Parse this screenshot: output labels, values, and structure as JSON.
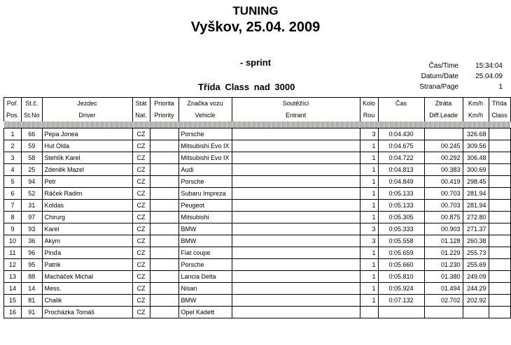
{
  "header": {
    "title": "TUNING",
    "subtitle": "Vyškov, 25.04. 2009",
    "stage": "- sprint",
    "class_title": "Třída  Class  nad 3000"
  },
  "info": [
    {
      "label": "Čas/Time",
      "value": "15:34:04"
    },
    {
      "label": "Datum/Date",
      "value": "25.04.09"
    },
    {
      "label": "Strana/Page",
      "value": "1"
    }
  ],
  "columns": [
    [
      "Poř.",
      "Pos."
    ],
    [
      "St.č.",
      "St.No"
    ],
    [
      "Jezdec",
      "Driver"
    ],
    [
      "Stát",
      "Nat."
    ],
    [
      "Priorita",
      "Priority"
    ],
    [
      "Značka vozu",
      "Vehicle"
    ],
    [
      "Soutěžící",
      "Entrant"
    ],
    [
      "Kolo",
      "Rou"
    ],
    [
      "Čas",
      ""
    ],
    [
      "Ztráta",
      "Diff.Leade"
    ],
    [
      "Km/h",
      "Km/h"
    ],
    [
      "Třída",
      "Class"
    ]
  ],
  "rows": [
    [
      "1",
      "66",
      "Pepa Jonea",
      "CZ",
      "",
      "Porsche",
      "",
      "3",
      "0:04.430",
      "",
      "326.68",
      ""
    ],
    [
      "2",
      "59",
      "Hut Olda",
      "CZ",
      "",
      "Mitsubishi Evo IX",
      "",
      "1",
      "0:04.675",
      "00.245",
      "309.56",
      ""
    ],
    [
      "3",
      "58",
      "Stehlík Karel",
      "CZ",
      "",
      "Mitsubishi Evo IX",
      "",
      "1",
      "0:04.722",
      "00.292",
      "306.48",
      ""
    ],
    [
      "4",
      "25",
      "Zdeněk Mazel",
      "CZ",
      "",
      "Audi",
      "",
      "1",
      "0:04.813",
      "00.383",
      "300.69",
      ""
    ],
    [
      "5",
      "94",
      "Petr",
      "CZ",
      "",
      "Porsche",
      "",
      "1",
      "0:04.849",
      "00.419",
      "298.45",
      ""
    ],
    [
      "6",
      "52",
      "Ráček Radim",
      "CZ",
      "",
      "Subaru Impreza",
      "",
      "1",
      "0:05.133",
      "00.703",
      "281.94",
      ""
    ],
    [
      "7",
      "31",
      "Koldas",
      "CZ",
      "",
      "Peugeot",
      "",
      "1",
      "0:05.133",
      "00.703",
      "281.94",
      ""
    ],
    [
      "8",
      "97",
      "Chirurg",
      "CZ",
      "",
      "Mitsubishi",
      "",
      "1",
      "0:05.305",
      "00.875",
      "272.80",
      ""
    ],
    [
      "9",
      "93",
      "Karel",
      "CZ",
      "",
      "BMW",
      "",
      "3",
      "0:05.333",
      "00.903",
      "271.37",
      ""
    ],
    [
      "10",
      "36",
      "Akym",
      "CZ",
      "",
      "BMW",
      "",
      "3",
      "0:05.558",
      "01.128",
      "260.38",
      ""
    ],
    [
      "11",
      "96",
      "Pinďa",
      "CZ",
      "",
      "Fiat coupe",
      "",
      "1",
      "0:05.659",
      "01.229",
      "255.73",
      ""
    ],
    [
      "12",
      "95",
      "Patrik",
      "CZ",
      "",
      "Porsche",
      "",
      "1",
      "0:05.660",
      "01.230",
      "255.69",
      ""
    ],
    [
      "13",
      "88",
      "Macháček Michal",
      "CZ",
      "",
      "Lancia Delta",
      "",
      "1",
      "0:05.810",
      "01.380",
      "249.09",
      ""
    ],
    [
      "14",
      "14",
      "Mess.",
      "CZ",
      "",
      "Nisan",
      "",
      "1",
      "0:05.924",
      "01.494",
      "244.29",
      ""
    ],
    [
      "15",
      "81",
      "Chalik",
      "CZ",
      "",
      "BMW",
      "",
      "1",
      "0:07.132",
      "02.702",
      "202.92",
      ""
    ],
    [
      "16",
      "91",
      "Procházka Tomáš",
      "CZ",
      "",
      "Opel Kadett",
      "",
      "",
      "",
      "",
      "",
      ""
    ]
  ]
}
